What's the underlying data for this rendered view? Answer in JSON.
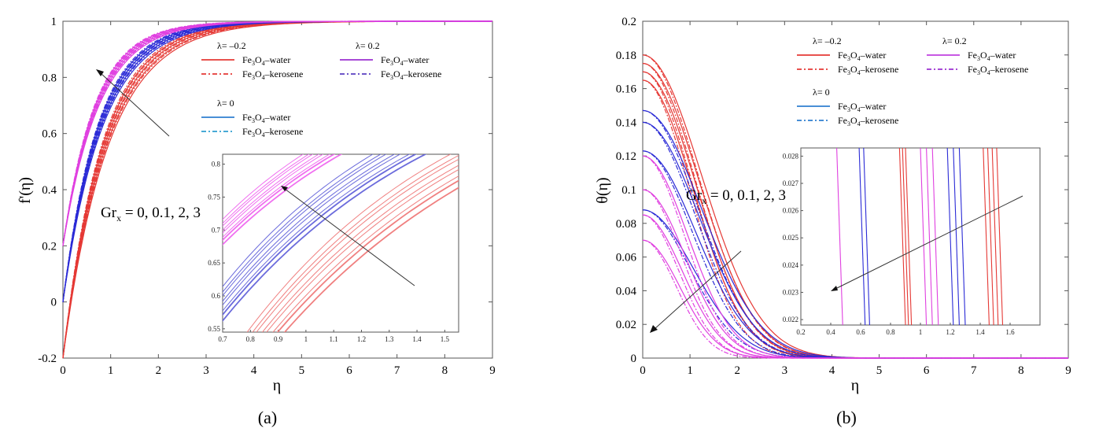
{
  "captions": {
    "a": "(a)",
    "b": "(b)"
  },
  "colors": {
    "neg": "#e53935",
    "zero": "#2f7fd0",
    "blue": "#2b2bd6",
    "pos": "#e040e0",
    "legendPos": "#9b30d0",
    "inset_neg": "#f08080",
    "inset_zero": "#6b6bdc",
    "inset_pos": "#f070f0"
  },
  "chart_data": [
    {
      "type": "line",
      "panel": "a",
      "ylabel": "f'(η)",
      "xlabel": "η",
      "xlim": [
        0,
        9
      ],
      "ylim": [
        -0.2,
        1
      ],
      "xticks": [
        "0",
        "1",
        "2",
        "3",
        "4",
        "5",
        "6",
        "7",
        "8",
        "9"
      ],
      "yticks": [
        "-0.2",
        "0",
        "0.2",
        "0.4",
        "0.6",
        "0.8",
        "1"
      ],
      "annotation": {
        "text": "Gr",
        "sub": "x",
        "rest": " = 0, 0.1, 2, 3"
      },
      "legend": [
        {
          "header": "λ= –0.2",
          "entries": [
            {
              "label": "Fe3O4–water",
              "style": "solid",
              "color": "#e53935"
            },
            {
              "label": "Fe3O4–kerosene",
              "style": "dashdot",
              "color": "#e53935"
            }
          ]
        },
        {
          "header": "λ= 0.2",
          "entries": [
            {
              "label": "Fe3O4–water",
              "style": "solid",
              "color": "#9b30d0"
            },
            {
              "label": "Fe3O4–kerosene",
              "style": "dashdot",
              "color": "#5a3fc0"
            }
          ]
        },
        {
          "header": "λ= 0",
          "entries": [
            {
              "label": "Fe3O4–water",
              "style": "solid",
              "color": "#2f7fd0"
            },
            {
              "label": "Fe3O4–kerosene",
              "style": "dashdot",
              "color": "#2f9fd0"
            }
          ]
        }
      ],
      "series": [
        {
          "group": "λ=-0.2",
          "color": "#e53935",
          "f0": -0.2,
          "k": [
            1.05,
            1.1,
            1.15,
            1.2
          ]
        },
        {
          "group": "λ=0",
          "color": "#2b2bd6",
          "f0": 0,
          "k": [
            1.18,
            1.23,
            1.28,
            1.33
          ]
        },
        {
          "group": "λ=0.2",
          "color": "#e040e0",
          "f0": 0.2,
          "k": [
            1.3,
            1.35,
            1.4,
            1.45
          ]
        }
      ],
      "inset": {
        "xlim": [
          0.7,
          1.55
        ],
        "ylim": [
          0.545,
          0.815
        ],
        "xticks": [
          "0.7",
          "0.8",
          "0.9",
          "1",
          "1.1",
          "1.2",
          "1.3",
          "1.4",
          "1.5"
        ],
        "yticks": [
          "0.55",
          "0.6",
          "0.65",
          "0.7",
          "0.75",
          "0.8"
        ]
      }
    },
    {
      "type": "line",
      "panel": "b",
      "ylabel": "θ(η)",
      "xlabel": "η",
      "xlim": [
        0,
        9
      ],
      "ylim": [
        0,
        0.2
      ],
      "xticks": [
        "0",
        "1",
        "2",
        "3",
        "4",
        "5",
        "6",
        "7",
        "8",
        "9"
      ],
      "yticks": [
        "0",
        "0.02",
        "0.04",
        "0.06",
        "0.08",
        "0.1",
        "0.12",
        "0.14",
        "0.16",
        "0.18",
        "0.2"
      ],
      "annotation": {
        "text": "Gr",
        "sub": "x",
        "rest": " = 0, 0.1, 2, 3"
      },
      "legend": [
        {
          "header": "λ= –0.2",
          "entries": [
            {
              "label": "Fe3O4–water",
              "style": "solid",
              "color": "#e53935"
            },
            {
              "label": "Fe3O4–kerosene",
              "style": "dashdot",
              "color": "#e53935"
            }
          ]
        },
        {
          "header": "λ= 0.2",
          "entries": [
            {
              "label": "Fe3O4–water",
              "style": "solid",
              "color": "#c040e0"
            },
            {
              "label": "Fe3O4–kerosene",
              "style": "dashdot",
              "color": "#9b30d0"
            }
          ]
        },
        {
          "header": "λ= 0",
          "entries": [
            {
              "label": "Fe3O4–water",
              "style": "solid",
              "color": "#2f7fd0"
            },
            {
              "label": "Fe3O4–kerosene",
              "style": "dashdot",
              "color": "#2f7fd0"
            }
          ]
        }
      ],
      "series": [
        {
          "group": "λ=-0.2",
          "color": "#e53935",
          "t0": [
            0.18,
            0.175,
            0.17,
            0.165
          ]
        },
        {
          "group": "λ=0",
          "color": "#2b2bd6",
          "t0": [
            0.147,
            0.14,
            0.123,
            0.088
          ]
        },
        {
          "group": "λ=0.2",
          "color": "#e040e0",
          "t0": [
            0.12,
            0.1,
            0.085,
            0.07
          ]
        }
      ],
      "inset": {
        "xlim": [
          0.2,
          1.8
        ],
        "ylim": [
          0.0218,
          0.0283
        ],
        "xticks": [
          "0.2",
          "0.4",
          "0.6",
          "0.8",
          "1",
          "1.2",
          "1.4",
          "1.6"
        ],
        "yticks": [
          "0.022",
          "0.023",
          "0.024",
          "0.025",
          "0.026",
          "0.027",
          "0.028"
        ],
        "lines": [
          {
            "color": "#e040e0",
            "x": [
              0.46,
              1.02,
              1.06,
              1.1
            ]
          },
          {
            "color": "#2b2bd6",
            "x": [
              0.61,
              0.64,
              1.2,
              1.24,
              1.28
            ]
          },
          {
            "color": "#e53935",
            "x": [
              0.88,
              0.9,
              0.92,
              1.44,
              1.47,
              1.5,
              1.53
            ]
          }
        ]
      }
    }
  ]
}
